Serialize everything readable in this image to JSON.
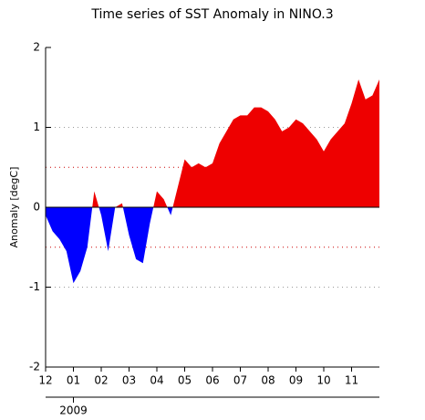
{
  "chart_data": {
    "type": "area",
    "title": "Time series of SST Anomaly in NINO.3",
    "y_label": "Anomaly [degC]",
    "x": [
      0,
      0.25,
      0.5,
      0.75,
      1,
      1.25,
      1.5,
      1.75,
      2,
      2.25,
      2.5,
      2.75,
      3,
      3.25,
      3.5,
      3.75,
      4,
      4.25,
      4.5,
      4.75,
      5,
      5.25,
      5.5,
      5.75,
      6,
      6.25,
      6.5,
      6.75,
      7,
      7.25,
      7.5,
      7.75,
      8,
      8.25,
      8.5,
      8.75,
      9,
      9.25,
      9.5,
      9.75,
      10,
      10.25,
      10.5,
      10.75,
      11,
      11.25,
      11.5,
      11.75,
      12
    ],
    "values": [
      -0.1,
      -0.3,
      -0.4,
      -0.55,
      -0.95,
      -0.8,
      -0.5,
      0.2,
      -0.1,
      -0.55,
      0.0,
      0.05,
      -0.35,
      -0.65,
      -0.7,
      -0.2,
      0.2,
      0.1,
      -0.1,
      0.25,
      0.6,
      0.5,
      0.55,
      0.5,
      0.55,
      0.8,
      0.95,
      1.1,
      1.15,
      1.15,
      1.25,
      1.25,
      1.2,
      1.1,
      0.95,
      1.0,
      1.1,
      1.05,
      0.95,
      0.85,
      0.7,
      0.85,
      0.95,
      1.05,
      1.3,
      1.6,
      1.35,
      1.4,
      1.6
    ],
    "positive_color": "#ee0000",
    "negative_color": "#0000ff",
    "xlim": [
      0,
      12
    ],
    "xticks": [
      {
        "value": 0,
        "label": "12"
      },
      {
        "value": 1,
        "label": "01"
      },
      {
        "value": 2,
        "label": "02"
      },
      {
        "value": 3,
        "label": "03"
      },
      {
        "value": 4,
        "label": "04"
      },
      {
        "value": 5,
        "label": "05"
      },
      {
        "value": 6,
        "label": "06"
      },
      {
        "value": 7,
        "label": "07"
      },
      {
        "value": 8,
        "label": "08"
      },
      {
        "value": 9,
        "label": "09"
      },
      {
        "value": 10,
        "label": "10"
      },
      {
        "value": 11,
        "label": "11"
      }
    ],
    "year_ticks": [
      {
        "value": 1,
        "label": "2009"
      }
    ],
    "ylim": [
      -2,
      2
    ],
    "yticks": [
      -2,
      -1,
      0,
      1,
      2
    ],
    "gridlines": [
      {
        "value": 1,
        "color": "#999999"
      },
      {
        "value": 0.5,
        "color": "#cc0000"
      },
      {
        "value": -0.5,
        "color": "#cc0000"
      },
      {
        "value": -1,
        "color": "#999999"
      }
    ]
  }
}
